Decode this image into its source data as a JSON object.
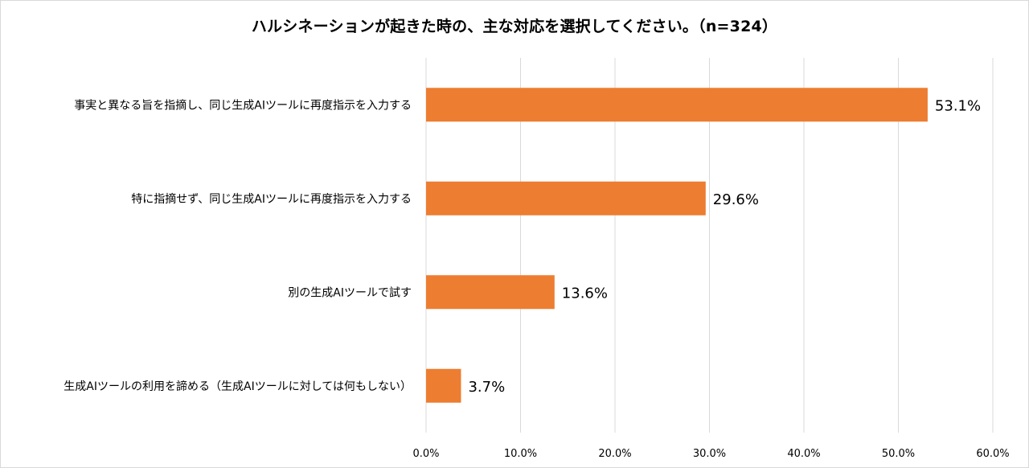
{
  "chart_data": {
    "type": "bar",
    "orientation": "horizontal",
    "title": "ハルシネーションが起きた時の、主な対応を選択してください。（n=324）",
    "categories": [
      "事実と異なる旨を指摘し、同じ生成AIツールに再度指示を入力する",
      "特に指摘せず、同じ生成AIツールに再度指示を入力する",
      "別の生成AIツールで試す",
      "生成AIツールの利用を諦める（生成AIツールに対しては何もしない）"
    ],
    "values": [
      53.1,
      29.6,
      13.6,
      3.7
    ],
    "value_labels": [
      "53.1%",
      "29.6%",
      "13.6%",
      "3.7%"
    ],
    "xlim": [
      0,
      60
    ],
    "xticks": [
      0,
      10,
      20,
      30,
      40,
      50,
      60
    ],
    "xtick_labels": [
      "0.0%",
      "10.0%",
      "20.0%",
      "30.0%",
      "40.0%",
      "50.0%",
      "60.0%"
    ],
    "grid": "vertical",
    "bar_color": "#ED7D31",
    "grid_color": "#d9d9d9"
  }
}
